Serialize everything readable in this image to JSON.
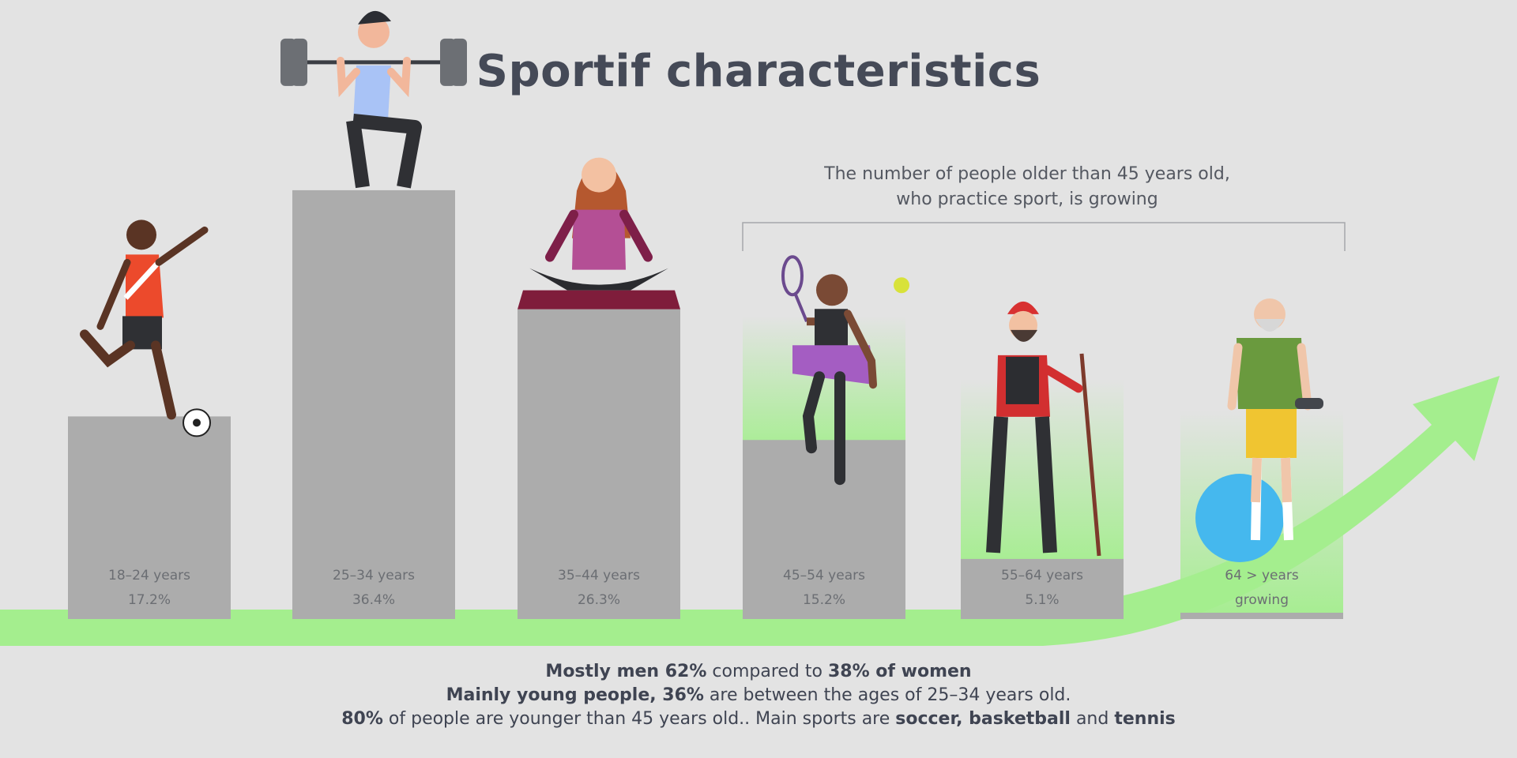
{
  "chart_data": {
    "type": "bar",
    "title": "Sportif characteristics",
    "categories": [
      "18-24 years",
      "25-34 years",
      "35-44 years",
      "45-54 years",
      "55-64 years",
      "64 > years"
    ],
    "category_labels": [
      "18–24 years",
      "25–34 years",
      "35–44 years",
      "45–54 years",
      "55–64 years",
      "64 > years"
    ],
    "values": [
      17.2,
      36.4,
      26.3,
      15.2,
      5.1,
      null
    ],
    "value_labels": [
      "17.2%",
      "36.4%",
      "26.3%",
      "15.2%",
      "5.1%",
      "growing"
    ],
    "value_unit": "%",
    "ylim": [
      0,
      40
    ],
    "grid": false,
    "legend": "none",
    "colors": {
      "bar": "#acacac",
      "background": "#e3e3e3",
      "trend_arrow": "#a4ee8e",
      "title": "#454a57",
      "text": "#545861"
    },
    "annotation": {
      "line1": "The number of people older than 45 years old,",
      "line2": "who practice sport, is growing"
    },
    "illustrations": [
      "soccer-player-icon",
      "weightlifter-icon",
      "yoga-woman-icon",
      "tennis-player-icon",
      "hiker-icon",
      "senior-fitness-icon"
    ]
  },
  "footer": {
    "line1": [
      {
        "text": "Mostly men 62%",
        "bold": true
      },
      {
        "text": " compared to ",
        "bold": false
      },
      {
        "text": "38% of women",
        "bold": true
      }
    ],
    "line2": [
      {
        "text": "Mainly young people, 36%",
        "bold": true
      },
      {
        "text": " are between the ages of 25–34 years old.",
        "bold": false
      }
    ],
    "line3": [
      {
        "text": "80%",
        "bold": true
      },
      {
        "text": " of people are younger than 45 years old.. Main sports are ",
        "bold": false
      },
      {
        "text": "soccer, basketball",
        "bold": true
      },
      {
        "text": " and ",
        "bold": false
      },
      {
        "text": "tennis",
        "bold": true
      }
    ]
  }
}
